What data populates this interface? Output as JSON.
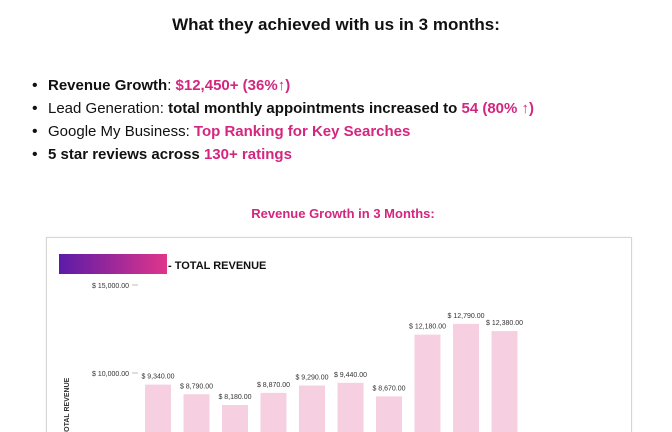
{
  "headline": "What they achieved with us in 3 months:",
  "bullets": {
    "revenue": {
      "label": "Revenue Growth",
      "sep": ": ",
      "value": "$12,450+ (36%↑)"
    },
    "leads": {
      "label": "Lead Generation",
      "sep": ": ",
      "text": "total monthly appointments increased to ",
      "value": "54 (80% ↑)"
    },
    "gmb": {
      "label": "Google My Business",
      "sep": ": ",
      "value": "Top Ranking for Key Searches"
    },
    "reviews": {
      "text": "5 star reviews across ",
      "value": "130+ ratings"
    }
  },
  "chart_title": "Revenue Growth in 3 Months:",
  "colors": {
    "accent": "#d4267f",
    "bar": "#f6cfe0",
    "legend_start": "#5b1ba8",
    "legend_end": "#e0358b"
  },
  "chart_data": {
    "type": "bar",
    "legend": "- TOTAL REVENUE",
    "ylabel": "TOTAL REVENUE",
    "y_ticks": [
      "$ 15,000.00",
      "$ 10,000.00"
    ],
    "y_tick_values": [
      15000,
      10000
    ],
    "values": [
      9340,
      8790,
      8180,
      8870,
      9290,
      9440,
      8670,
      12180,
      12790,
      12380
    ],
    "value_labels": [
      "$ 9,340.00",
      "$ 8,790.00",
      "$ 8,180.00",
      "$ 8,870.00",
      "$ 9,290.00",
      "$ 9,440.00",
      "$ 8,670.00",
      "$ 12,180.00",
      "$ 12,790.00",
      "$ 12,380.00"
    ],
    "grid": false
  }
}
